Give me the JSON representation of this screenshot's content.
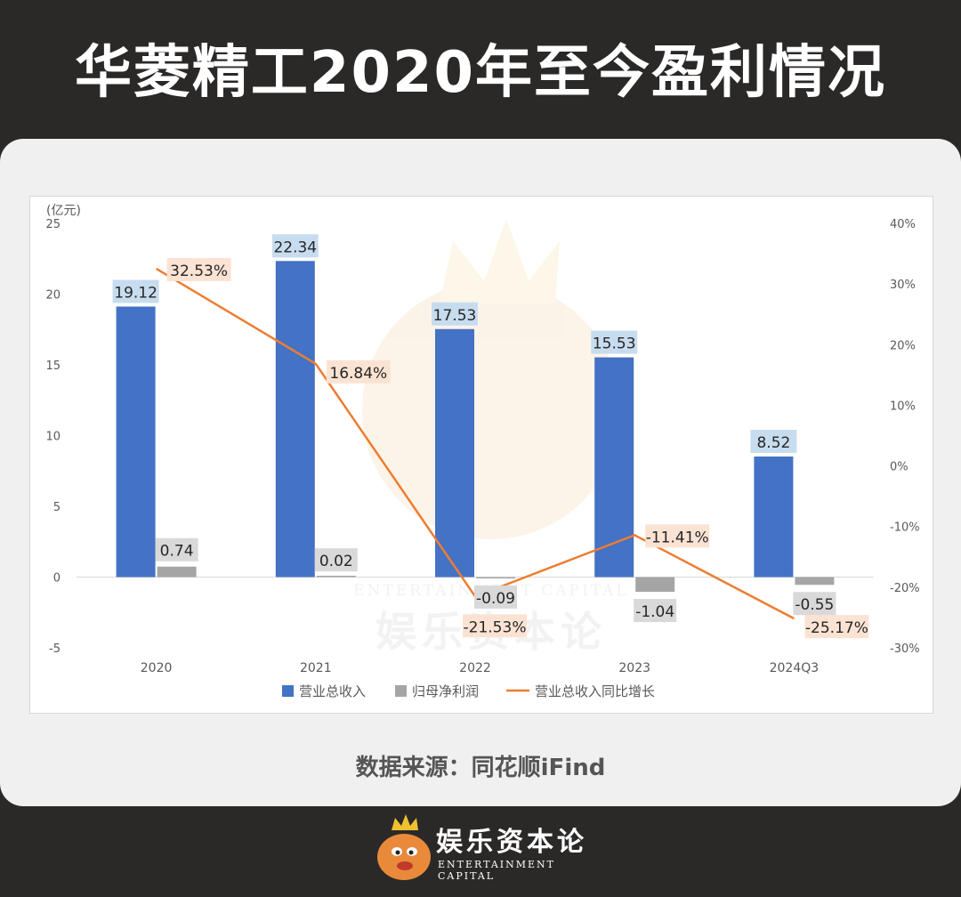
{
  "header": {
    "title": "华菱精工2020年至今盈利情况"
  },
  "source": {
    "text": "数据来源：同花顺iFind"
  },
  "logo": {
    "name": "娱乐资本论",
    "sub": "ENTERTAINMENT CAPITAL"
  },
  "watermark": {
    "name": "娱乐资本论",
    "sub": "ENTERTAINMENT CAPITAL"
  },
  "colors": {
    "revenue": "#4472c4",
    "profit": "#a5a5a5",
    "growth": "#ed7d31",
    "revenue_label_bg": "#c8dcef",
    "profit_label_bg": "#d9d9d9",
    "growth_label_bg": "#fbe3d3"
  },
  "chart_data": {
    "type": "bar",
    "categories": [
      "2020",
      "2021",
      "2022",
      "2023",
      "2024Q3"
    ],
    "y_unit_label": "(亿元)",
    "ylim": [
      -5,
      25
    ],
    "yticks": [
      -5,
      0,
      5,
      10,
      15,
      20,
      25
    ],
    "y2lim": [
      -30,
      40
    ],
    "y2ticks": [
      "-30%",
      "-20%",
      "-10%",
      "0%",
      "10%",
      "20%",
      "30%",
      "40%"
    ],
    "series": [
      {
        "name": "营业总收入",
        "kind": "bar",
        "axis": "left",
        "values": [
          19.12,
          22.34,
          17.53,
          15.53,
          8.52
        ],
        "labels": [
          "19.12",
          "22.34",
          "17.53",
          "15.53",
          "8.52"
        ]
      },
      {
        "name": "归母净利润",
        "kind": "bar",
        "axis": "left",
        "values": [
          0.74,
          0.02,
          -0.09,
          -1.04,
          -0.55
        ],
        "labels": [
          "0.74",
          "0.02",
          "-0.09",
          "-1.04",
          "-0.55"
        ]
      },
      {
        "name": "营业总收入同比增长",
        "kind": "line",
        "axis": "right",
        "values": [
          32.53,
          16.84,
          -21.53,
          -11.41,
          -25.17
        ],
        "labels": [
          "32.53%",
          "16.84%",
          "-21.53%",
          "-11.41%",
          "-25.17%"
        ]
      }
    ],
    "legend": "bottom",
    "grid": false
  }
}
